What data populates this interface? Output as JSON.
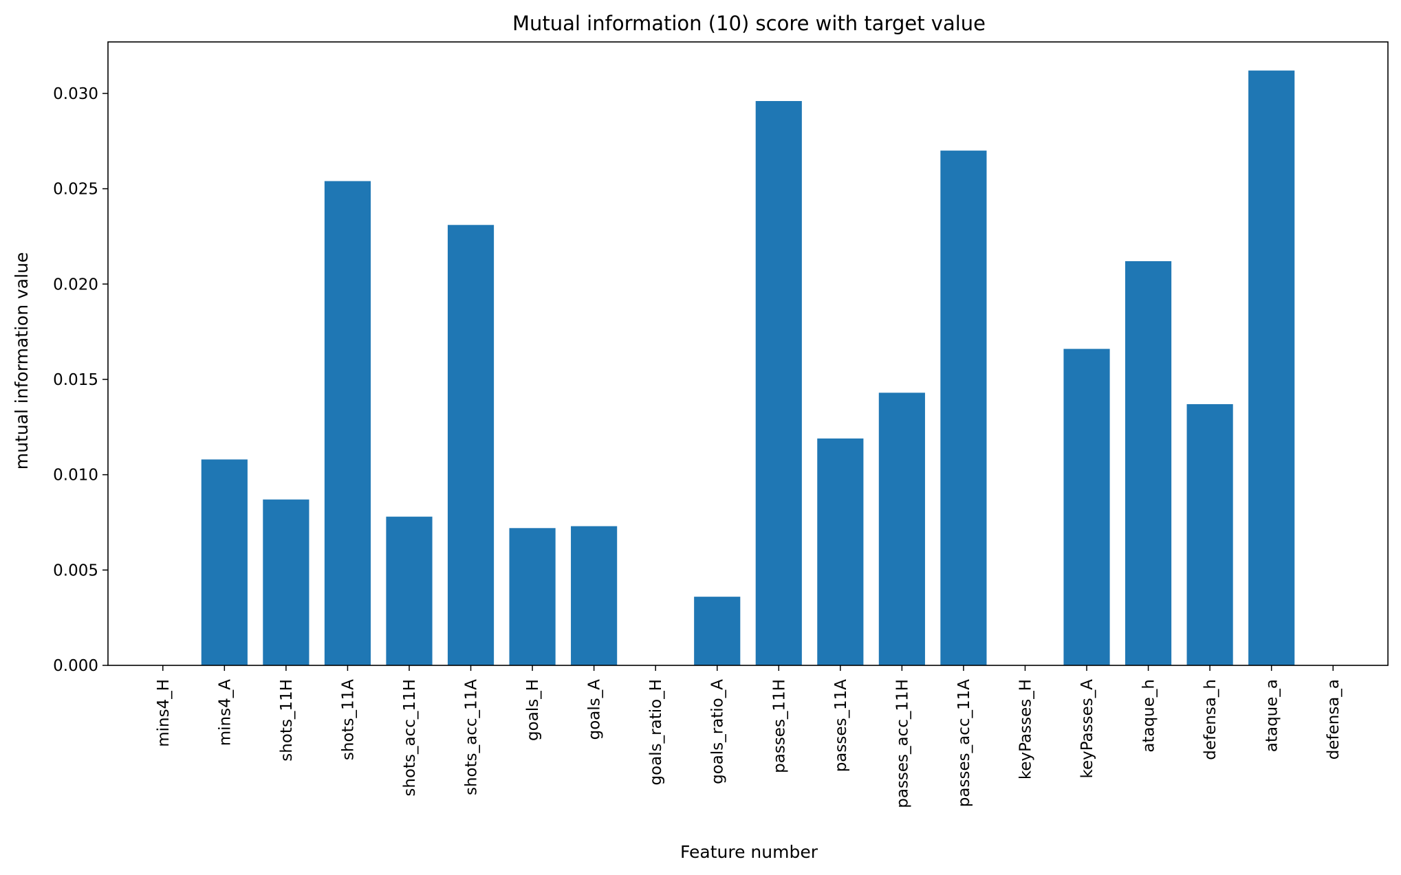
{
  "chart_data": {
    "type": "bar",
    "title": "Mutual information (10) score with target value",
    "xlabel": "Feature number",
    "ylabel": "mutual information value",
    "categories": [
      "mins4_H",
      "mins4_A",
      "shots_11H",
      "shots_11A",
      "shots_acc_11H",
      "shots_acc_11A",
      "goals_H",
      "goals_A",
      "goals_ratio_H",
      "goals_ratio_A",
      "passes_11H",
      "passes_11A",
      "passes_acc_11H",
      "passes_acc_11A",
      "keyPasses_H",
      "keyPasses_A",
      "ataque_h",
      "defensa_h",
      "ataque_a",
      "defensa_a"
    ],
    "values": [
      0.0,
      0.0108,
      0.0087,
      0.0254,
      0.0078,
      0.0231,
      0.0072,
      0.0073,
      0.0,
      0.0036,
      0.0296,
      0.0119,
      0.0143,
      0.027,
      0.0,
      0.0166,
      0.0212,
      0.0137,
      0.0312,
      0.0
    ],
    "ylim": [
      0,
      0.0327
    ],
    "yticks": [
      "0.000",
      "0.005",
      "0.010",
      "0.015",
      "0.020",
      "0.025",
      "0.030"
    ],
    "ytick_values": [
      0,
      0.005,
      0.01,
      0.015,
      0.02,
      0.025,
      0.03
    ],
    "bar_color": "#1f77b4",
    "grid": false,
    "legend": "none"
  }
}
